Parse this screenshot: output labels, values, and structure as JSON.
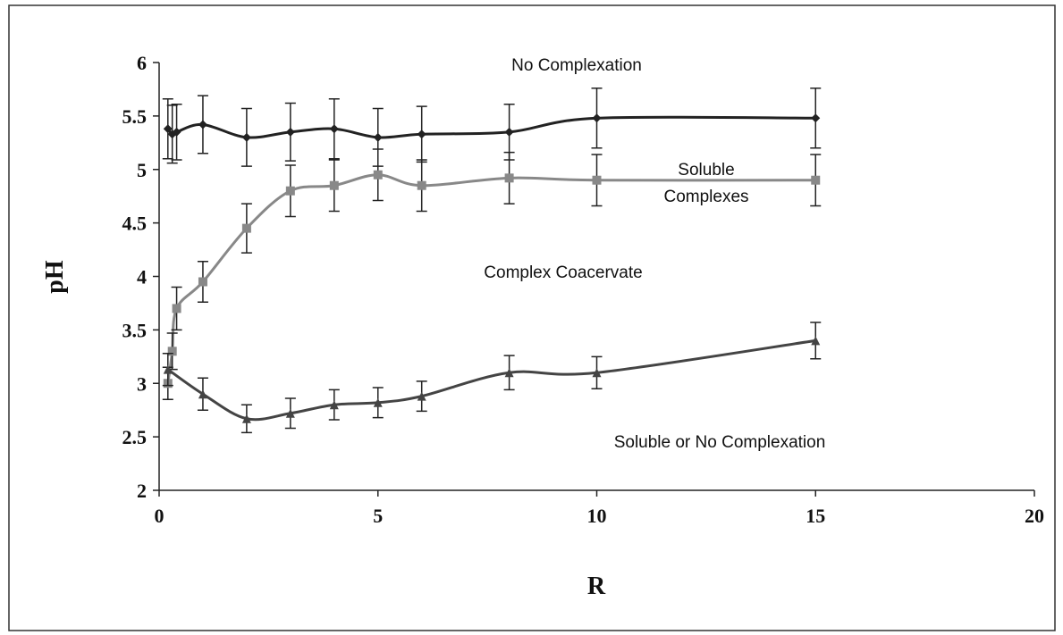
{
  "chart_data": {
    "type": "scatter",
    "x_label": "R",
    "y_label": "pH",
    "xlim": [
      0,
      20
    ],
    "xticks": [
      0,
      5,
      10,
      15,
      20
    ],
    "ylim": [
      2,
      6
    ],
    "yticks": [
      2,
      2.5,
      3,
      3.5,
      4,
      4.5,
      5,
      5.5,
      6
    ],
    "grid": false,
    "annotations": [
      "No Complexation",
      "Soluble",
      "Complexes",
      "Complex Coacervate",
      "Soluble or No Complexation"
    ],
    "series": [
      {
        "color": "#222222",
        "marker": "diamond",
        "x": [
          0.2,
          0.3,
          0.4,
          1,
          2,
          3,
          4,
          5,
          6,
          8,
          10,
          15
        ],
        "values": [
          5.38,
          5.33,
          5.35,
          5.42,
          5.3,
          5.35,
          5.38,
          5.3,
          5.33,
          5.35,
          5.48,
          5.48
        ],
        "errors": [
          0.28,
          0.27,
          0.26,
          0.27,
          0.27,
          0.27,
          0.28,
          0.27,
          0.26,
          0.26,
          0.28,
          0.28
        ]
      },
      {
        "color": "#888888",
        "marker": "square",
        "x": [
          0.2,
          0.3,
          0.4,
          1,
          2,
          3,
          4,
          5,
          6,
          8,
          10,
          15
        ],
        "values": [
          3.0,
          3.3,
          3.7,
          3.95,
          4.45,
          4.8,
          4.85,
          4.95,
          4.85,
          4.92,
          4.9,
          4.9
        ],
        "errors": [
          0.15,
          0.17,
          0.2,
          0.19,
          0.23,
          0.24,
          0.24,
          0.24,
          0.24,
          0.24,
          0.24,
          0.24
        ]
      },
      {
        "color": "#444444",
        "marker": "triangle",
        "x": [
          0.2,
          1,
          2,
          3,
          4,
          5,
          6,
          8,
          10,
          15
        ],
        "values": [
          3.13,
          2.9,
          2.67,
          2.72,
          2.8,
          2.82,
          2.88,
          3.1,
          3.1,
          3.4
        ],
        "errors": [
          0.15,
          0.15,
          0.13,
          0.14,
          0.14,
          0.14,
          0.14,
          0.16,
          0.15,
          0.17
        ]
      }
    ]
  }
}
